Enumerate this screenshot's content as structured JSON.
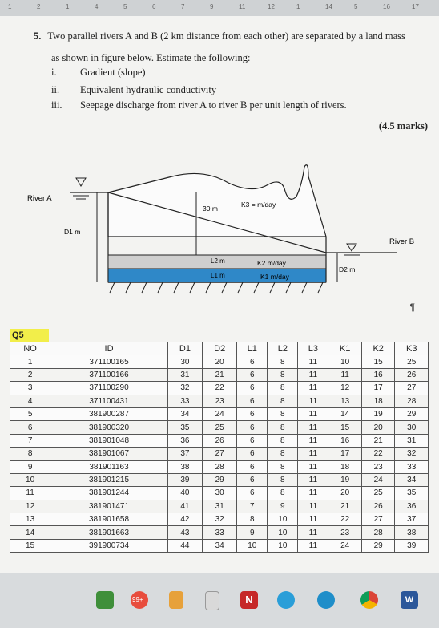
{
  "ruler": {
    "marks": [
      "1",
      "2",
      "1",
      "4",
      "5",
      "6",
      "7",
      "9",
      "11",
      "12",
      "1",
      "14",
      "5",
      "16",
      "17"
    ]
  },
  "question": {
    "number": "5.",
    "line1": "Two parallel rivers A and B (2 km distance from each other) are separated by a land mass",
    "line2": "as shown in figure below. Estimate the following:",
    "items": [
      {
        "roman": "i.",
        "text": "Gradient (slope)"
      },
      {
        "roman": "ii.",
        "text": "Equivalent hydraulic conductivity"
      },
      {
        "roman": "iii.",
        "text": "Seepage discharge from river A to river B per unit length of rivers."
      }
    ],
    "marks": "(4.5 marks)"
  },
  "diagram": {
    "river_a": "River A",
    "river_b": "River B",
    "d1": "D1  m",
    "d2": "D2  m",
    "h30": "30 m",
    "k3": "K3 =      m/day",
    "l2": "L2  m",
    "l1": "L1 m",
    "k2": "K2   m/day",
    "k1": "K1    m/day"
  },
  "pilcrow": "¶",
  "table_label": "Q5",
  "table": {
    "headers": [
      "NO",
      "ID",
      "D1",
      "D2",
      "L1",
      "L2",
      "L3",
      "K1",
      "K2",
      "K3"
    ],
    "rows": [
      [
        "1",
        "371100165",
        "30",
        "20",
        "6",
        "8",
        "11",
        "10",
        "15",
        "25"
      ],
      [
        "2",
        "371100166",
        "31",
        "21",
        "6",
        "8",
        "11",
        "11",
        "16",
        "26"
      ],
      [
        "3",
        "371100290",
        "32",
        "22",
        "6",
        "8",
        "11",
        "12",
        "17",
        "27"
      ],
      [
        "4",
        "371100431",
        "33",
        "23",
        "6",
        "8",
        "11",
        "13",
        "18",
        "28"
      ],
      [
        "5",
        "381900287",
        "34",
        "24",
        "6",
        "8",
        "11",
        "14",
        "19",
        "29"
      ],
      [
        "6",
        "381900320",
        "35",
        "25",
        "6",
        "8",
        "11",
        "15",
        "20",
        "30"
      ],
      [
        "7",
        "381901048",
        "36",
        "26",
        "6",
        "8",
        "11",
        "16",
        "21",
        "31"
      ],
      [
        "8",
        "381901067",
        "37",
        "27",
        "6",
        "8",
        "11",
        "17",
        "22",
        "32"
      ],
      [
        "9",
        "381901163",
        "38",
        "28",
        "6",
        "8",
        "11",
        "18",
        "23",
        "33"
      ],
      [
        "10",
        "381901215",
        "39",
        "29",
        "6",
        "8",
        "11",
        "19",
        "24",
        "34"
      ],
      [
        "11",
        "381901244",
        "40",
        "30",
        "6",
        "8",
        "11",
        "20",
        "25",
        "35"
      ],
      [
        "12",
        "381901471",
        "41",
        "31",
        "7",
        "9",
        "11",
        "21",
        "26",
        "36"
      ],
      [
        "13",
        "381901658",
        "42",
        "32",
        "8",
        "10",
        "11",
        "22",
        "27",
        "37"
      ],
      [
        "14",
        "381901663",
        "43",
        "33",
        "9",
        "10",
        "11",
        "23",
        "28",
        "38"
      ],
      [
        "15",
        "391900734",
        "44",
        "34",
        "10",
        "10",
        "11",
        "24",
        "29",
        "39"
      ]
    ]
  },
  "taskbar": {
    "badge": "99+",
    "icons": [
      "campus-icon",
      "mail-badge-icon",
      "tool-icon",
      "window-icon",
      "app-n-icon",
      "telegram-icon",
      "edge-icon",
      "chrome-icon",
      "word-icon"
    ],
    "colors": {
      "telegram": "#2a9ed8",
      "chrome": "#4caf50",
      "word": "#2b579a",
      "n": "#c62828"
    }
  }
}
